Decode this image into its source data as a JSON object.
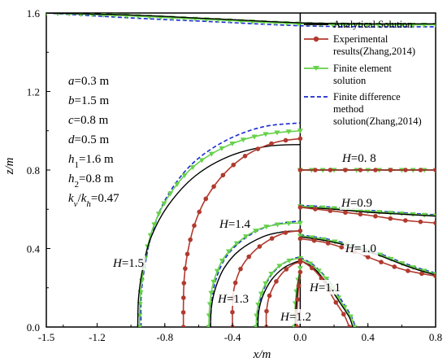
{
  "chart_data": {
    "type": "line",
    "xlabel": "x/m",
    "ylabel": "z/m",
    "xlim": [
      -1.5,
      0.8
    ],
    "ylim": [
      0.0,
      1.6
    ],
    "x_ticks": [
      "-1.5",
      "-1.2",
      "-0.8",
      "-0.4",
      "0.0",
      "0.4",
      "0.8"
    ],
    "x_tick_values": [
      -1.5,
      -1.2,
      -0.8,
      -0.4,
      0.0,
      0.4,
      0.8
    ],
    "y_ticks": [
      "0.0",
      "0.4",
      "0.8",
      "1.2",
      "1.6"
    ],
    "y_tick_values": [
      0.0,
      0.4,
      0.8,
      1.2,
      1.6
    ],
    "legend_position": "top-right",
    "parameters": [
      {
        "sym": "a",
        "sub": "",
        "rest": "=0.3 m"
      },
      {
        "sym": "b",
        "sub": "",
        "rest": "=1.5 m"
      },
      {
        "sym": "c",
        "sub": "",
        "rest": "=0.8 m"
      },
      {
        "sym": "d",
        "sub": "",
        "rest": "=0.5 m"
      },
      {
        "sym": "h",
        "sub": "1",
        "rest": "=1.6 m"
      },
      {
        "sym": "h",
        "sub": "2",
        "rest": "=0.8 m"
      }
    ],
    "ratio_label": {
      "k1": "k",
      "s1": "v",
      "slash": "/",
      "k2": "k",
      "s2": "h",
      "rest": "=0.47"
    },
    "series": [
      {
        "name": "Analytical Solution",
        "color": "#000000",
        "style": "solid",
        "marker": "none"
      },
      {
        "name": "Experimental results(Zhang,2014)",
        "color": "#b03a2e",
        "style": "solid",
        "marker": "circle"
      },
      {
        "name": "Finite element solution",
        "color": "#66d14a",
        "style": "solid",
        "marker": "triangle-down"
      },
      {
        "name": "Finite difference method solution(Zhang,2014)",
        "color": "#1a2ad1",
        "style": "dashed",
        "marker": "none"
      }
    ],
    "legend_lines": [
      [
        "Analytical Solution"
      ],
      [
        "Experimental",
        "results(Zhang,2014)"
      ],
      [
        "Finite element",
        "solution"
      ],
      [
        "Finite difference",
        "method",
        "solution(Zhang,2014)"
      ]
    ],
    "contour_labels": [
      {
        "prefix": "H",
        "value": "=1.5"
      },
      {
        "prefix": "H",
        "value": "=1.4"
      },
      {
        "prefix": "H",
        "value": "=1.3"
      },
      {
        "prefix": "H",
        "value": "=1.2"
      },
      {
        "prefix": "H",
        "value": "=1.1"
      },
      {
        "prefix": "H",
        "value": "=1.0"
      },
      {
        "prefix": "H",
        "value": "=0.9"
      },
      {
        "prefix": "H",
        "value": "=0. 8"
      }
    ],
    "contours": {
      "H=1.6": {
        "analytical": [
          [
            -1.5,
            1.6
          ],
          [
            -1.0,
            1.59
          ],
          [
            -0.5,
            1.57
          ],
          [
            0.0,
            1.55
          ],
          [
            0.4,
            1.545
          ],
          [
            0.8,
            1.545
          ]
        ],
        "fem": [
          [
            -1.5,
            1.6
          ],
          [
            -1.0,
            1.585
          ],
          [
            -0.5,
            1.565
          ],
          [
            0.0,
            1.545
          ],
          [
            0.4,
            1.54
          ],
          [
            0.8,
            1.54
          ]
        ],
        "fdm": [
          [
            -1.5,
            1.6
          ],
          [
            -1.0,
            1.575
          ],
          [
            -0.5,
            1.555
          ],
          [
            0.0,
            1.535
          ],
          [
            0.4,
            1.53
          ],
          [
            0.8,
            1.53
          ]
        ]
      },
      "H=1.5": {
        "analytical": [
          [
            -0.96,
            0.0
          ],
          [
            -0.955,
            0.15
          ],
          [
            -0.93,
            0.3
          ],
          [
            -0.88,
            0.46
          ],
          [
            -0.78,
            0.62
          ],
          [
            -0.62,
            0.77
          ],
          [
            -0.42,
            0.87
          ],
          [
            -0.2,
            0.92
          ],
          [
            0.0,
            0.93
          ]
        ],
        "experimental": [
          [
            -0.69,
            0.0
          ],
          [
            -0.69,
            0.12
          ],
          [
            -0.685,
            0.25
          ],
          [
            -0.665,
            0.38
          ],
          [
            -0.625,
            0.52
          ],
          [
            -0.56,
            0.65
          ],
          [
            -0.45,
            0.78
          ],
          [
            -0.31,
            0.88
          ],
          [
            -0.15,
            0.94
          ],
          [
            0.0,
            0.96
          ]
        ],
        "fem": [
          [
            -0.95,
            0.0
          ],
          [
            -0.945,
            0.15
          ],
          [
            -0.925,
            0.3
          ],
          [
            -0.88,
            0.48
          ],
          [
            -0.79,
            0.65
          ],
          [
            -0.64,
            0.81
          ],
          [
            -0.44,
            0.92
          ],
          [
            -0.22,
            0.98
          ],
          [
            0.0,
            1.0
          ]
        ],
        "fdm": [
          [
            -0.94,
            0.0
          ],
          [
            -0.94,
            0.15
          ],
          [
            -0.92,
            0.3
          ],
          [
            -0.875,
            0.48
          ],
          [
            -0.79,
            0.66
          ],
          [
            -0.64,
            0.83
          ],
          [
            -0.44,
            0.95
          ],
          [
            -0.22,
            1.02
          ],
          [
            0.0,
            1.04
          ]
        ]
      },
      "H=1.4": {
        "analytical": [
          [
            -0.53,
            0.0
          ],
          [
            -0.525,
            0.1
          ],
          [
            -0.5,
            0.2
          ],
          [
            -0.45,
            0.3
          ],
          [
            -0.36,
            0.39
          ],
          [
            -0.22,
            0.46
          ],
          [
            -0.1,
            0.485
          ],
          [
            0.0,
            0.49
          ]
        ],
        "experimental": [
          [
            -0.4,
            0.0
          ],
          [
            -0.4,
            0.1
          ],
          [
            -0.39,
            0.2
          ],
          [
            -0.35,
            0.3
          ],
          [
            -0.28,
            0.38
          ],
          [
            -0.19,
            0.44
          ],
          [
            -0.09,
            0.48
          ],
          [
            0.0,
            0.49
          ]
        ],
        "fem": [
          [
            -0.54,
            0.0
          ],
          [
            -0.535,
            0.1
          ],
          [
            -0.515,
            0.22
          ],
          [
            -0.46,
            0.34
          ],
          [
            -0.37,
            0.43
          ],
          [
            -0.24,
            0.5
          ],
          [
            -0.11,
            0.525
          ],
          [
            0.0,
            0.53
          ]
        ],
        "fdm": [
          [
            -0.53,
            0.0
          ],
          [
            -0.525,
            0.1
          ],
          [
            -0.505,
            0.22
          ],
          [
            -0.45,
            0.34
          ],
          [
            -0.36,
            0.43
          ],
          [
            -0.23,
            0.5
          ],
          [
            -0.1,
            0.53
          ],
          [
            0.0,
            0.54
          ]
        ]
      },
      "H=1.3": {
        "analytical": [
          [
            -0.25,
            0.0
          ],
          [
            -0.245,
            0.08
          ],
          [
            -0.22,
            0.16
          ],
          [
            -0.17,
            0.24
          ],
          [
            -0.1,
            0.3
          ],
          [
            -0.03,
            0.33
          ],
          [
            0.0,
            0.335
          ]
        ],
        "experimental": [
          [
            -0.2,
            0.0
          ],
          [
            -0.2,
            0.07
          ],
          [
            -0.185,
            0.15
          ],
          [
            -0.15,
            0.22
          ],
          [
            -0.1,
            0.28
          ],
          [
            -0.04,
            0.32
          ],
          [
            0.0,
            0.33
          ]
        ],
        "fem": [
          [
            -0.26,
            0.0
          ],
          [
            -0.255,
            0.08
          ],
          [
            -0.23,
            0.17
          ],
          [
            -0.18,
            0.26
          ],
          [
            -0.11,
            0.32
          ],
          [
            -0.04,
            0.345
          ],
          [
            0.0,
            0.35
          ]
        ],
        "fdm": [
          [
            -0.255,
            0.0
          ],
          [
            -0.25,
            0.08
          ],
          [
            -0.225,
            0.17
          ],
          [
            -0.175,
            0.26
          ],
          [
            -0.105,
            0.32
          ],
          [
            -0.035,
            0.35
          ],
          [
            0.0,
            0.355
          ]
        ]
      },
      "H=1.2": {
        "analytical": [
          [
            -0.03,
            0.0
          ],
          [
            -0.025,
            0.1
          ],
          [
            -0.015,
            0.2
          ],
          [
            0.0,
            0.29
          ]
        ],
        "experimental": [
          [
            -0.02,
            0.0
          ],
          [
            -0.018,
            0.1
          ],
          [
            -0.01,
            0.2
          ],
          [
            0.0,
            0.28
          ]
        ],
        "fem": [
          [
            -0.035,
            0.0
          ],
          [
            -0.03,
            0.1
          ],
          [
            -0.02,
            0.2
          ],
          [
            0.0,
            0.3
          ]
        ],
        "fdm": [
          [
            -0.03,
            0.0
          ],
          [
            -0.025,
            0.1
          ],
          [
            -0.015,
            0.2
          ],
          [
            0.0,
            0.3
          ]
        ]
      },
      "H=1.1": {
        "analytical": [
          [
            0.0,
            0.34
          ],
          [
            0.08,
            0.3
          ],
          [
            0.16,
            0.22
          ],
          [
            0.23,
            0.13
          ],
          [
            0.29,
            0.05
          ],
          [
            0.31,
            0.0
          ]
        ],
        "experimental": [
          [
            0.0,
            0.34
          ],
          [
            0.07,
            0.3
          ],
          [
            0.14,
            0.23
          ],
          [
            0.2,
            0.14
          ],
          [
            0.26,
            0.06
          ],
          [
            0.29,
            0.0
          ]
        ],
        "fem": [
          [
            0.0,
            0.35
          ],
          [
            0.08,
            0.31
          ],
          [
            0.17,
            0.23
          ],
          [
            0.24,
            0.13
          ],
          [
            0.3,
            0.05
          ],
          [
            0.32,
            0.0
          ]
        ],
        "fdm": [
          [
            0.0,
            0.355
          ],
          [
            0.08,
            0.315
          ],
          [
            0.17,
            0.235
          ],
          [
            0.245,
            0.135
          ],
          [
            0.305,
            0.05
          ],
          [
            0.325,
            0.0
          ]
        ]
      },
      "H=1.0": {
        "analytical": [
          [
            0.0,
            0.46
          ],
          [
            0.15,
            0.44
          ],
          [
            0.3,
            0.41
          ],
          [
            0.45,
            0.37
          ],
          [
            0.6,
            0.32
          ],
          [
            0.7,
            0.29
          ],
          [
            0.8,
            0.265
          ]
        ],
        "experimental": [
          [
            0.0,
            0.45
          ],
          [
            0.15,
            0.43
          ],
          [
            0.3,
            0.39
          ],
          [
            0.45,
            0.34
          ],
          [
            0.6,
            0.295
          ],
          [
            0.7,
            0.275
          ],
          [
            0.8,
            0.26
          ]
        ],
        "fem": [
          [
            0.0,
            0.465
          ],
          [
            0.15,
            0.445
          ],
          [
            0.3,
            0.415
          ],
          [
            0.45,
            0.375
          ],
          [
            0.6,
            0.325
          ],
          [
            0.7,
            0.295
          ],
          [
            0.8,
            0.27
          ]
        ],
        "fdm": [
          [
            0.0,
            0.47
          ],
          [
            0.15,
            0.45
          ],
          [
            0.3,
            0.42
          ],
          [
            0.45,
            0.38
          ],
          [
            0.6,
            0.33
          ],
          [
            0.7,
            0.3
          ],
          [
            0.8,
            0.275
          ]
        ]
      },
      "H=0.9": {
        "analytical": [
          [
            0.0,
            0.61
          ],
          [
            0.2,
            0.6
          ],
          [
            0.4,
            0.585
          ],
          [
            0.6,
            0.575
          ],
          [
            0.8,
            0.565
          ]
        ],
        "experimental": [
          [
            0.0,
            0.61
          ],
          [
            0.2,
            0.59
          ],
          [
            0.4,
            0.57
          ],
          [
            0.6,
            0.545
          ],
          [
            0.8,
            0.53
          ]
        ],
        "fem": [
          [
            0.0,
            0.615
          ],
          [
            0.2,
            0.605
          ],
          [
            0.4,
            0.59
          ],
          [
            0.6,
            0.578
          ],
          [
            0.8,
            0.568
          ]
        ],
        "fdm": [
          [
            0.0,
            0.62
          ],
          [
            0.2,
            0.61
          ],
          [
            0.4,
            0.595
          ],
          [
            0.6,
            0.582
          ],
          [
            0.8,
            0.572
          ]
        ]
      },
      "H=0.8": {
        "analytical": [
          [
            0.0,
            0.8
          ],
          [
            0.8,
            0.8
          ]
        ],
        "experimental": [
          [
            0.0,
            0.8
          ],
          [
            0.8,
            0.8
          ]
        ],
        "fem": [
          [
            0.0,
            0.8
          ],
          [
            0.8,
            0.8
          ]
        ],
        "fdm": [
          [
            0.0,
            0.8
          ],
          [
            0.8,
            0.8
          ]
        ]
      }
    },
    "vertical_divider_x": 0.0
  }
}
